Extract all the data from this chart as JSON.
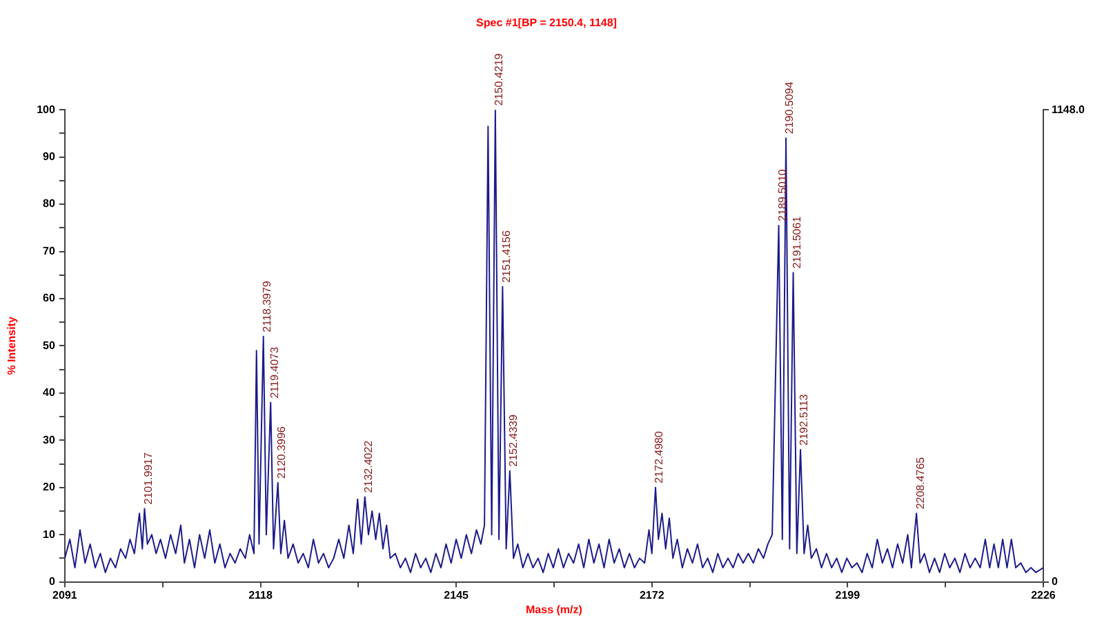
{
  "chart_data": {
    "type": "line",
    "title": "Spec #1[BP = 2150.4, 1148]",
    "xlabel": "Mass (m/z)",
    "ylabel": "% Intensity",
    "xlim": [
      2091,
      2226
    ],
    "xticks": [
      2091,
      {
        "value": 2104.5,
        "label": null
      },
      2118,
      {
        "value": 2131.5,
        "label": null
      },
      2145,
      {
        "value": 2158.5,
        "label": null
      },
      2172,
      {
        "value": 2185.5,
        "label": null
      },
      2199,
      {
        "value": 2212.5,
        "label": null
      },
      2226
    ],
    "ylim": [
      0,
      100
    ],
    "yticks": [
      0,
      {
        "value": 5,
        "label": null
      },
      10,
      {
        "value": 15,
        "label": null
      },
      20,
      {
        "value": 25,
        "label": null
      },
      30,
      {
        "value": 35,
        "label": null
      },
      40,
      {
        "value": 45,
        "label": null
      },
      50,
      {
        "value": 55,
        "label": null
      },
      60,
      {
        "value": 65,
        "label": null
      },
      70,
      {
        "value": 75,
        "label": null
      },
      80,
      {
        "value": 85,
        "label": null
      },
      90,
      {
        "value": 95,
        "label": null
      },
      100
    ],
    "y2lim": [
      0,
      1148
    ],
    "y2ticks": [
      0,
      {
        "value": 1148,
        "label": "1148.0"
      }
    ],
    "grid": false,
    "legend": false,
    "marker": "none",
    "line_style": "solid",
    "series": [
      {
        "color": "#1c1c8a",
        "x": [
          2091,
          2091.7,
          2092.4,
          2093.1,
          2093.8,
          2094.5,
          2095.2,
          2095.9,
          2096.6,
          2097.3,
          2098,
          2098.7,
          2099.4,
          2100,
          2100.6,
          2101.3,
          2101.7,
          2102,
          2102.4,
          2103,
          2103.6,
          2104.2,
          2104.9,
          2105.6,
          2106.3,
          2107,
          2107.5,
          2108.2,
          2108.9,
          2109.6,
          2110.3,
          2111,
          2111.7,
          2112.4,
          2113.1,
          2113.8,
          2114.5,
          2115.2,
          2115.9,
          2116.5,
          2117.1,
          2117.45,
          2117.8,
          2118.4,
          2118.8,
          2119.4,
          2119.8,
          2120.4,
          2120.8,
          2121.3,
          2121.8,
          2122.5,
          2123.2,
          2123.9,
          2124.6,
          2125.3,
          2126,
          2126.7,
          2127.4,
          2128.1,
          2128.8,
          2129.5,
          2130.2,
          2130.8,
          2131.4,
          2131.9,
          2132.4,
          2132.9,
          2133.4,
          2133.9,
          2134.4,
          2134.9,
          2135.4,
          2135.9,
          2136.6,
          2137.3,
          2138,
          2138.7,
          2139.4,
          2140.1,
          2140.8,
          2141.5,
          2142.2,
          2142.9,
          2143.6,
          2144.3,
          2145,
          2145.7,
          2146.4,
          2147.1,
          2147.8,
          2148.4,
          2148.9,
          2149.4,
          2149.9,
          2150.4,
          2150.9,
          2151.4,
          2151.9,
          2152.4,
          2152.9,
          2153.5,
          2154.2,
          2154.9,
          2155.6,
          2156.3,
          2157,
          2157.7,
          2158.4,
          2159.1,
          2159.8,
          2160.5,
          2161.2,
          2161.9,
          2162.6,
          2163.3,
          2164,
          2164.7,
          2165.4,
          2166.1,
          2166.8,
          2167.5,
          2168.2,
          2168.9,
          2169.6,
          2170.3,
          2171,
          2171.6,
          2172,
          2172.5,
          2172.9,
          2173.4,
          2173.9,
          2174.4,
          2174.9,
          2175.5,
          2176.2,
          2176.9,
          2177.6,
          2178.3,
          2179,
          2179.7,
          2180.4,
          2181.1,
          2181.8,
          2182.5,
          2183.2,
          2183.9,
          2184.6,
          2185.3,
          2186,
          2186.7,
          2187.4,
          2188,
          2188.6,
          2189.5,
          2190,
          2190.5,
          2191,
          2191.5,
          2192,
          2192.5,
          2193,
          2193.5,
          2194,
          2194.7,
          2195.4,
          2196.1,
          2196.8,
          2197.5,
          2198.2,
          2198.9,
          2199.6,
          2200.3,
          2201,
          2201.7,
          2202.4,
          2203.1,
          2203.8,
          2204.5,
          2205.2,
          2205.9,
          2206.6,
          2207.3,
          2207.8,
          2208.5,
          2209,
          2209.6,
          2210.3,
          2211,
          2211.7,
          2212.4,
          2213.1,
          2213.8,
          2214.5,
          2215.2,
          2215.9,
          2216.6,
          2217.3,
          2218,
          2218.6,
          2219.2,
          2219.8,
          2220.4,
          2221,
          2221.6,
          2222.2,
          2222.9,
          2223.6,
          2224.3,
          2225,
          2226
        ],
        "values": [
          5,
          9,
          3,
          11,
          4,
          8,
          3,
          6,
          2,
          5,
          3,
          7,
          5,
          9,
          6,
          14.5,
          7,
          15.5,
          8,
          10,
          6,
          9,
          5,
          10,
          6,
          12,
          4,
          9,
          3,
          10,
          5,
          11,
          4,
          8,
          3,
          6,
          4,
          7,
          5,
          10,
          6,
          49,
          8,
          52,
          10,
          38,
          7,
          21,
          6,
          13,
          5,
          8,
          4,
          6,
          3,
          9,
          4,
          6,
          3,
          5,
          9,
          5,
          12,
          6,
          17.5,
          8,
          18,
          10,
          15,
          9,
          14.5,
          7,
          12,
          5,
          6,
          3,
          5,
          2,
          6,
          3,
          5,
          2,
          6,
          3,
          8,
          4,
          9,
          5,
          10,
          6,
          11,
          8,
          12,
          96.5,
          10,
          100,
          9,
          62.5,
          7,
          23.5,
          5,
          8,
          3,
          6,
          3,
          5,
          2,
          6,
          3,
          7,
          3,
          6,
          4,
          8,
          3,
          9,
          4,
          8,
          3,
          9,
          4,
          7,
          3,
          6,
          3,
          5,
          4,
          11,
          6,
          20,
          9,
          14.5,
          7,
          13.5,
          5,
          9,
          3,
          7,
          4,
          8,
          3,
          5,
          2,
          6,
          3,
          5,
          3,
          6,
          4,
          6,
          4,
          7,
          5,
          8,
          10,
          75.5,
          9,
          94,
          7,
          65.5,
          6,
          28,
          6,
          12,
          5,
          7,
          3,
          6,
          3,
          5,
          2,
          5,
          3,
          4,
          2,
          6,
          3,
          9,
          4,
          7,
          3,
          8,
          4,
          10,
          3,
          14.5,
          4,
          6,
          2,
          5,
          2,
          6,
          3,
          5,
          2,
          6,
          3,
          5,
          3,
          9,
          3,
          8,
          3,
          9,
          3,
          9,
          3,
          4,
          2,
          3,
          2,
          3
        ]
      }
    ],
    "annotations": [
      {
        "text": "2101.9917",
        "x": 2102,
        "y": 15.5
      },
      {
        "text": "2118.3979",
        "x": 2118.4,
        "y": 52
      },
      {
        "text": "2119.4073",
        "x": 2119.4,
        "y": 38
      },
      {
        "text": "2120.3996",
        "x": 2120.4,
        "y": 21
      },
      {
        "text": "2132.4022",
        "x": 2132.4,
        "y": 18
      },
      {
        "text": "2150.4219",
        "x": 2150.4,
        "y": 100
      },
      {
        "text": "2151.4156",
        "x": 2151.4,
        "y": 62.5
      },
      {
        "text": "2152.4339",
        "x": 2152.4,
        "y": 23.5
      },
      {
        "text": "2172.4980",
        "x": 2172.5,
        "y": 20
      },
      {
        "text": "2189.5010",
        "x": 2189.5,
        "y": 75.5
      },
      {
        "text": "2190.5094",
        "x": 2190.5,
        "y": 94
      },
      {
        "text": "2191.5061",
        "x": 2191.5,
        "y": 65.5
      },
      {
        "text": "2192.5113",
        "x": 2192.5,
        "y": 28
      },
      {
        "text": "2208.4765",
        "x": 2208.5,
        "y": 14.5
      }
    ]
  }
}
